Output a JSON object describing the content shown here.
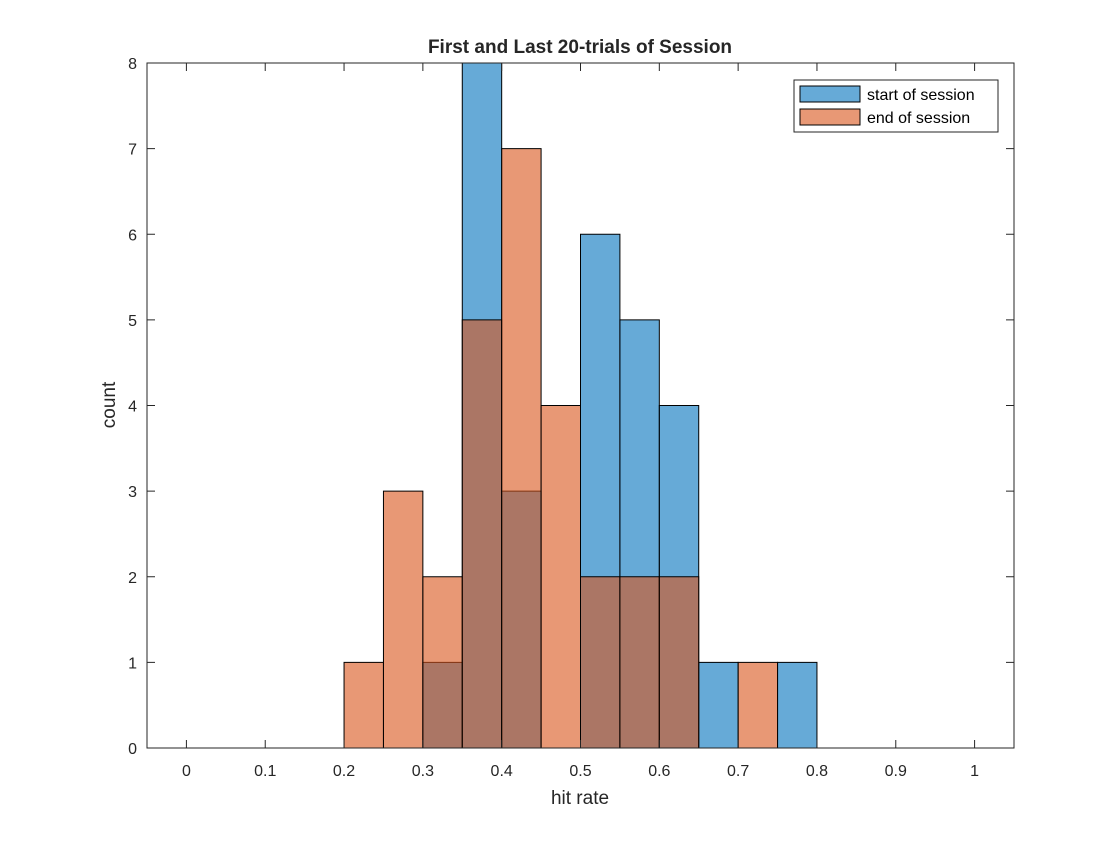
{
  "chart_data": {
    "type": "bar",
    "subtype": "overlapping-histogram",
    "title": "First and Last 20-trials of Session",
    "xlabel": "hit rate",
    "ylabel": "count",
    "xlim": [
      -0.05,
      1.05
    ],
    "ylim": [
      0,
      8
    ],
    "xticks": [
      0,
      0.1,
      0.2,
      0.3,
      0.4,
      0.5,
      0.6,
      0.7,
      0.8,
      0.9,
      1
    ],
    "xtick_labels": [
      "0",
      "0.1",
      "0.2",
      "0.3",
      "0.4",
      "0.5",
      "0.6",
      "0.7",
      "0.8",
      "0.9",
      "1"
    ],
    "yticks": [
      0,
      1,
      2,
      3,
      4,
      5,
      6,
      7,
      8
    ],
    "ytick_labels": [
      "0",
      "1",
      "2",
      "3",
      "4",
      "5",
      "6",
      "7",
      "8"
    ],
    "bin_width": 0.05,
    "bin_starts": [
      0.2,
      0.25,
      0.3,
      0.35,
      0.4,
      0.45,
      0.5,
      0.55,
      0.6,
      0.65,
      0.7,
      0.75
    ],
    "series": [
      {
        "name": "start of session",
        "color": "#0072BD",
        "values": [
          0,
          0,
          1,
          8,
          3,
          0,
          6,
          5,
          4,
          1,
          0,
          1
        ]
      },
      {
        "name": "end of session",
        "color": "#D95319",
        "values": [
          1,
          3,
          2,
          5,
          7,
          4,
          2,
          2,
          2,
          0,
          1,
          0
        ]
      }
    ],
    "legend_position": "top-right",
    "grid": false
  }
}
